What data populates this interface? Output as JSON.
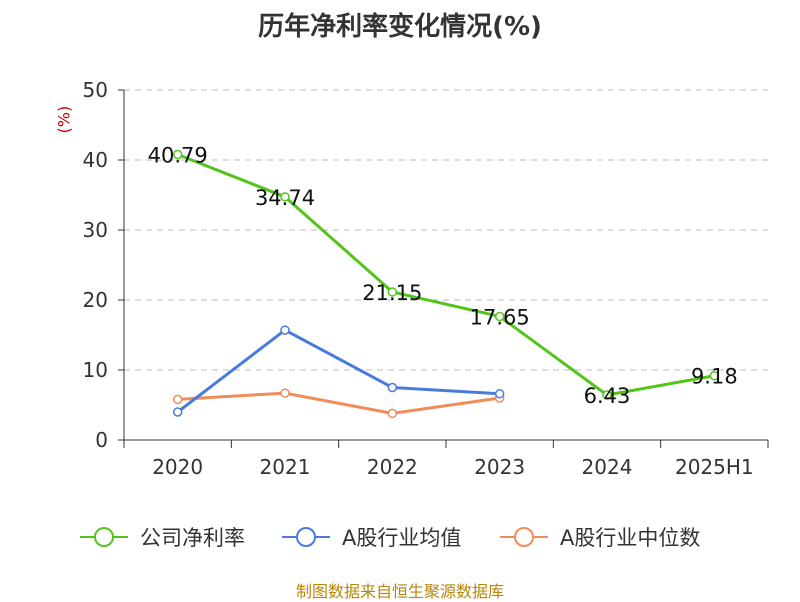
{
  "title": "历年净利率变化情况(%)",
  "unit": "(%)",
  "source": "制图数据来自恒生聚源数据库",
  "colors": {
    "net_margin": "#52c41a",
    "industry_avg": "#4a7bdc",
    "industry_median": "#f08c5a",
    "grid": "#bbbbbb",
    "axis": "#333333"
  },
  "chart_data": {
    "type": "line",
    "categories": [
      "2020",
      "2021",
      "2022",
      "2023",
      "2024",
      "2025H1"
    ],
    "ylim": [
      0,
      50
    ],
    "yticks": [
      0,
      10,
      20,
      30,
      40,
      50
    ],
    "grid": true,
    "legend_position": "bottom",
    "series": [
      {
        "name": "公司净利率",
        "values": [
          40.79,
          34.74,
          21.15,
          17.65,
          6.43,
          9.18
        ],
        "labels": [
          "40.79",
          "34.74",
          "21.15",
          "17.65",
          "6.43",
          "9.18"
        ]
      },
      {
        "name": "A股行业均值",
        "values": [
          4.0,
          15.7,
          7.5,
          6.6,
          null,
          null
        ]
      },
      {
        "name": "A股行业中位数",
        "values": [
          5.8,
          6.7,
          3.8,
          6.0,
          null,
          null
        ]
      }
    ]
  }
}
